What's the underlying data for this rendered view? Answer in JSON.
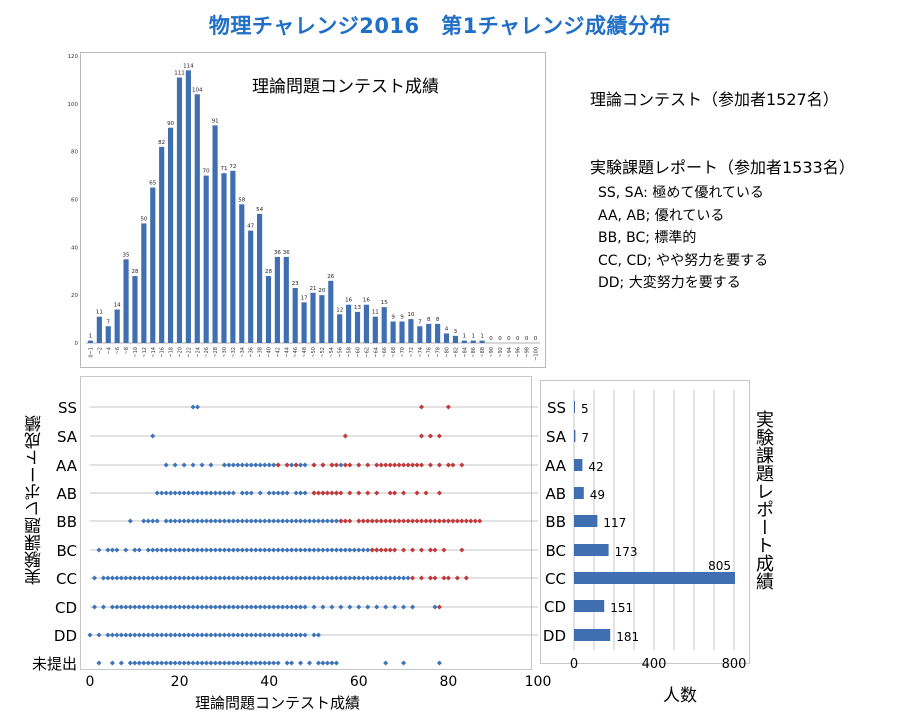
{
  "title": "物理チャレンジ2016　第1チャレンジ成績分布",
  "info": {
    "theory_heading": "理論コンテスト（参加者1527名）",
    "exp_heading": "実験課題レポート（参加者1533名）",
    "grades": [
      "SS, SA: 極めて優れている",
      "AA, AB; 優れている",
      "BB, BC; 標準的",
      "CC, CD; やや努力を要する",
      "DD; 大変努力を要する"
    ]
  },
  "colors": {
    "bar": "#3f6fb0",
    "blue_point": "#3d74b8",
    "red_point": "#c0393b",
    "title": "#1f6fc6",
    "grid": "#c8c8c8"
  },
  "chart_data": [
    {
      "type": "bar",
      "title": "理論問題コンテスト成績",
      "categories": [
        "0~1",
        "~2",
        "~4",
        "~6",
        "~8",
        "~10",
        "~12",
        "~14",
        "~16",
        "~18",
        "~20",
        "~22",
        "~24",
        "~26",
        "~28",
        "~30",
        "~32",
        "~34",
        "~36",
        "~38",
        "~40",
        "~42",
        "~44",
        "~46",
        "~48",
        "~50",
        "~52",
        "~54",
        "~56",
        "~58",
        "~60",
        "~62",
        "~64",
        "~66",
        "~68",
        "~70",
        "~72",
        "~74",
        "~76",
        "~78",
        "~80",
        "~82",
        "~84",
        "~86",
        "~88",
        "~90",
        "~92",
        "~94",
        "~96",
        "~98",
        "~100"
      ],
      "values": [
        1,
        11,
        7,
        14,
        35,
        28,
        50,
        65,
        82,
        90,
        111,
        114,
        104,
        70,
        91,
        71,
        72,
        58,
        47,
        54,
        28,
        36,
        36,
        23,
        17,
        21,
        20,
        26,
        12,
        16,
        13,
        16,
        11,
        15,
        9,
        9,
        10,
        7,
        8,
        8,
        4,
        3,
        1,
        1,
        1,
        0,
        0,
        0,
        0,
        0,
        0
      ],
      "ylim": [
        0,
        120
      ],
      "yticks": [
        0,
        20,
        40,
        60,
        80,
        100,
        120
      ]
    },
    {
      "type": "scatter",
      "xlabel": "理論問題コンテスト成績",
      "ylabel": "実験課題レポート成績",
      "xlim": [
        0,
        100
      ],
      "xticks": [
        0,
        20,
        40,
        60,
        80,
        100
      ],
      "categories": [
        "SS",
        "SA",
        "AA",
        "AB",
        "BB",
        "BC",
        "CC",
        "CD",
        "DD",
        "未提出"
      ],
      "series": [
        {
          "points": [
            {
              "cat": "SS",
              "blue": [
                23,
                24
              ],
              "red": [
                74,
                80
              ]
            },
            {
              "cat": "SA",
              "blue": [
                14
              ],
              "red": [
                57,
                74,
                76,
                78
              ]
            },
            {
              "cat": "AA",
              "blue": [
                17,
                19,
                21,
                23,
                25,
                27,
                30,
                31,
                32,
                33,
                34,
                35,
                36,
                37,
                38,
                39,
                40,
                41,
                42,
                44,
                45,
                46,
                47,
                48,
                50,
                52,
                54,
                56
              ],
              "red": [
                42,
                44,
                46,
                50,
                52,
                54,
                55,
                57,
                58,
                60,
                62,
                64,
                65,
                66,
                67,
                68,
                69,
                70,
                71,
                72,
                73,
                74,
                76,
                78,
                80,
                81,
                83
              ]
            },
            {
              "cat": "AB",
              "blue": [
                15,
                16,
                17,
                18,
                19,
                20,
                21,
                22,
                23,
                24,
                25,
                26,
                27,
                28,
                29,
                30,
                31,
                32,
                34,
                35,
                36,
                38,
                40,
                41,
                42,
                43,
                44,
                46,
                47,
                48,
                50,
                52,
                55
              ],
              "red": [
                50,
                51,
                52,
                53,
                54,
                55,
                56,
                58,
                60,
                62,
                64,
                67,
                68,
                70,
                73,
                75,
                78
              ]
            },
            {
              "cat": "BB",
              "blue": [
                9,
                12,
                13,
                14,
                15,
                17,
                18,
                19,
                20,
                21,
                22,
                23,
                24,
                25,
                26,
                27,
                28,
                29,
                30,
                31,
                32,
                33,
                34,
                35,
                36,
                37,
                38,
                39,
                40,
                41,
                42,
                43,
                44,
                45,
                46,
                47,
                48,
                49,
                50,
                51,
                52,
                53,
                54,
                55,
                56
              ],
              "red": [
                56,
                57,
                58,
                60,
                61,
                62,
                63,
                64,
                65,
                66,
                67,
                68,
                69,
                70,
                71,
                72,
                73,
                74,
                75,
                76,
                77,
                78,
                79,
                80,
                81,
                82,
                83,
                84,
                85,
                86,
                87
              ]
            },
            {
              "cat": "BC",
              "blue": [
                2,
                4,
                5,
                6,
                8,
                10,
                11,
                13,
                14,
                15,
                16,
                17,
                18,
                19,
                20,
                21,
                22,
                23,
                24,
                25,
                26,
                27,
                28,
                29,
                30,
                31,
                32,
                33,
                34,
                35,
                36,
                37,
                38,
                39,
                40,
                41,
                42,
                43,
                44,
                45,
                46,
                47,
                48,
                49,
                50,
                51,
                52,
                53,
                54,
                55,
                56,
                57,
                58,
                59,
                60,
                61,
                62,
                63,
                64
              ],
              "red": [
                63,
                64,
                65,
                66,
                67,
                68,
                70,
                72,
                74,
                76,
                77,
                79,
                83
              ]
            },
            {
              "cat": "CC",
              "blue": [
                1,
                3,
                4,
                5,
                6,
                7,
                8,
                9,
                10,
                11,
                12,
                13,
                14,
                15,
                16,
                17,
                18,
                19,
                20,
                21,
                22,
                23,
                24,
                25,
                26,
                27,
                28,
                29,
                30,
                31,
                32,
                33,
                34,
                35,
                36,
                37,
                38,
                39,
                40,
                41,
                42,
                43,
                44,
                45,
                46,
                47,
                48,
                49,
                50,
                51,
                52,
                53,
                54,
                55,
                56,
                57,
                58,
                59,
                60,
                61,
                62,
                63,
                64,
                65,
                66,
                67,
                68,
                69,
                70,
                71
              ],
              "red": [
                72,
                74,
                76,
                77,
                79,
                80,
                82,
                84
              ]
            },
            {
              "cat": "CD",
              "blue": [
                1,
                3,
                5,
                6,
                7,
                8,
                9,
                10,
                11,
                12,
                13,
                14,
                15,
                16,
                17,
                18,
                19,
                20,
                21,
                22,
                23,
                24,
                25,
                26,
                27,
                28,
                29,
                30,
                31,
                32,
                33,
                34,
                35,
                36,
                37,
                38,
                39,
                40,
                41,
                42,
                43,
                44,
                45,
                46,
                47,
                48,
                50,
                52,
                54,
                56,
                58,
                60,
                62,
                64,
                66,
                68,
                70,
                72,
                77
              ],
              "red": [
                78
              ]
            },
            {
              "cat": "DD",
              "blue": [
                0,
                2,
                4,
                5,
                6,
                7,
                8,
                9,
                10,
                11,
                12,
                13,
                14,
                15,
                16,
                17,
                18,
                19,
                20,
                21,
                22,
                23,
                24,
                25,
                26,
                27,
                28,
                29,
                30,
                31,
                32,
                33,
                34,
                35,
                36,
                37,
                38,
                39,
                40,
                41,
                42,
                43,
                44,
                45,
                46,
                47,
                48,
                50,
                51
              ],
              "red": []
            },
            {
              "cat": "未提出",
              "blue": [
                2,
                5,
                7,
                9,
                10,
                11,
                12,
                13,
                14,
                15,
                16,
                17,
                18,
                19,
                20,
                21,
                22,
                23,
                24,
                25,
                26,
                27,
                28,
                29,
                30,
                31,
                32,
                33,
                34,
                35,
                36,
                37,
                38,
                39,
                40,
                41,
                42,
                44,
                45,
                47,
                49,
                51,
                52,
                53,
                54,
                55,
                66,
                70,
                78
              ],
              "red": []
            }
          ]
        }
      ]
    },
    {
      "type": "bar",
      "orientation": "horizontal",
      "xlabel": "人数",
      "ylabel": "実験課題レポート成績",
      "categories": [
        "SS",
        "SA",
        "AA",
        "AB",
        "BB",
        "BC",
        "CC",
        "CD",
        "DD"
      ],
      "values": [
        5,
        7,
        42,
        49,
        117,
        173,
        805,
        151,
        181
      ],
      "xlim": [
        0,
        850
      ],
      "xticks": [
        0,
        400,
        800
      ]
    }
  ]
}
